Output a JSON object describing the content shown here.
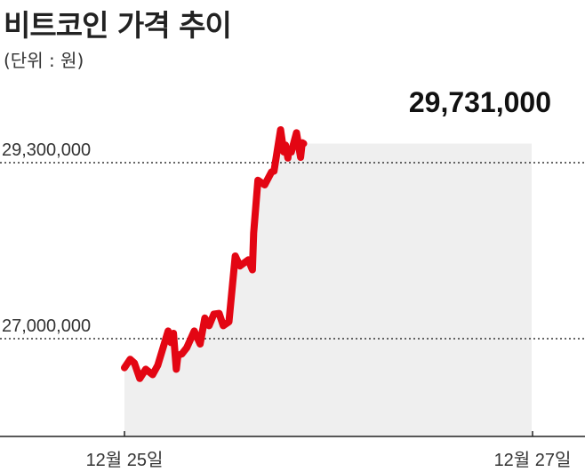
{
  "chart_data": {
    "type": "area",
    "title": "비트코인 가격 추이",
    "unit_label": "(단위 : 원)",
    "y_ticks": [
      {
        "value": 29300000,
        "label": "29,300,000"
      },
      {
        "value": 27000000,
        "label": "27,000,000"
      }
    ],
    "x_ticks": [
      {
        "x": 0,
        "label": "12월 25일"
      },
      {
        "x": 2,
        "label": "12월 27일"
      }
    ],
    "annotation": {
      "value": 29731000,
      "label": "29,731,000"
    },
    "series": [
      {
        "x": [
          0.0,
          0.028,
          0.049,
          0.075,
          0.104,
          0.138,
          0.163,
          0.214,
          0.227,
          0.24,
          0.254,
          0.262,
          0.281,
          0.305,
          0.342,
          0.371,
          0.394,
          0.415,
          0.438,
          0.464,
          0.484,
          0.512,
          0.543,
          0.566,
          0.607,
          0.627,
          0.633,
          0.654,
          0.687,
          0.721,
          0.733,
          0.765,
          0.781,
          0.789,
          0.801,
          0.805,
          0.818,
          0.843,
          0.863,
          0.871,
          0.878
        ],
        "values": [
          26620000,
          26730000,
          26680000,
          26480000,
          26600000,
          26530000,
          26650000,
          27100000,
          26950000,
          27070000,
          26600000,
          26780000,
          26800000,
          26880000,
          27100000,
          26930000,
          27270000,
          27170000,
          27320000,
          27330000,
          27170000,
          27220000,
          28080000,
          27950000,
          28030000,
          27900000,
          28380000,
          29070000,
          29010000,
          29180000,
          29190000,
          29730000,
          29440000,
          29530000,
          29360000,
          29440000,
          29440000,
          29690000,
          29370000,
          29560000,
          29550000
        ]
      }
    ]
  }
}
